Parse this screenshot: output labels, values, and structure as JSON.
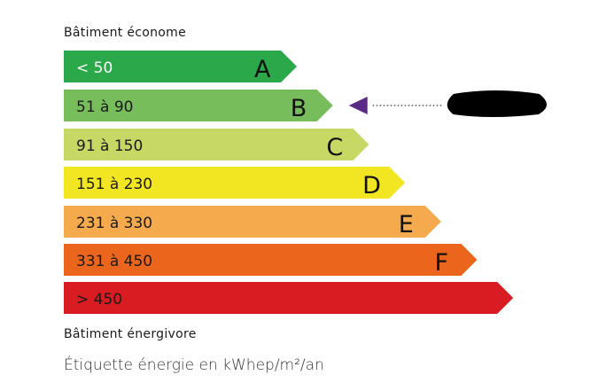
{
  "top_label": "Bâtiment économe",
  "bottom_label": "Bâtiment énergivore",
  "caption": "Étiquette énergie en kWhep/m²/an",
  "classes": [
    {
      "range": "< 50",
      "letter": "A",
      "color": "#2aa84a",
      "text_color": "#ffffff"
    },
    {
      "range": "51 à 90",
      "letter": "B",
      "color": "#78bd5c",
      "text_color": "#1a1a1a"
    },
    {
      "range": "91 à 150",
      "letter": "C",
      "color": "#c8d865",
      "text_color": "#1a1a1a"
    },
    {
      "range": "151 à 230",
      "letter": "D",
      "color": "#f2e522",
      "text_color": "#1a1a1a"
    },
    {
      "range": "231 à 330",
      "letter": "E",
      "color": "#f5ab4d",
      "text_color": "#1a1a1a"
    },
    {
      "range": "331 à 450",
      "letter": "F",
      "color": "#eb661c",
      "text_color": "#1a1a1a"
    },
    {
      "range": "> 450",
      "letter": "",
      "color": "#d81c22",
      "text_color": "#1a1a1a"
    }
  ],
  "indicator": {
    "class": "B",
    "color": "#5b2a86",
    "value_redacted": true
  }
}
